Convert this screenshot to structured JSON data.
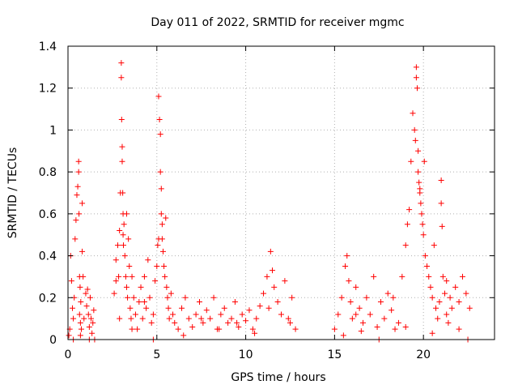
{
  "chart_data": {
    "type": "scatter",
    "title": "Day 011 of 2022, SRMTID for receiver mgmc",
    "xlabel": "GPS time / hours",
    "ylabel": "SRMTID / TECUs",
    "xlim": [
      0,
      24
    ],
    "ylim": [
      0,
      1.4
    ],
    "xticks": [
      0,
      5,
      10,
      15,
      20
    ],
    "yticks": [
      0,
      0.2,
      0.4,
      0.6,
      0.8,
      1.0,
      1.2,
      1.4
    ],
    "xtick_labels": [
      "0",
      "5",
      "10",
      "15",
      "20"
    ],
    "ytick_labels": [
      "0",
      "0.2",
      "0.4",
      "0.6",
      "0.8",
      "1",
      "1.2",
      "1.4"
    ],
    "grid": true,
    "marker": "+",
    "series": [
      {
        "name": "SRMTID",
        "color": "#ff0000",
        "x": [
          0.05,
          0.1,
          0.15,
          0.2,
          0.25,
          0.3,
          0.35,
          0.4,
          0.45,
          0.5,
          0.55,
          0.6,
          0.6,
          0.62,
          0.65,
          0.65,
          0.68,
          0.7,
          0.7,
          0.72,
          0.75,
          0.8,
          0.85,
          0.9,
          1.0,
          1.05,
          1.1,
          1.15,
          1.2,
          1.25,
          1.3,
          1.35,
          1.4,
          1.45,
          1.5,
          2.6,
          2.7,
          2.8,
          2.85,
          2.9,
          2.95,
          3.0,
          3.0,
          3.02,
          3.05,
          3.05,
          3.08,
          3.1,
          3.1,
          3.12,
          3.15,
          3.2,
          3.25,
          3.3,
          3.35,
          3.4,
          3.45,
          3.5,
          3.55,
          3.6,
          3.7,
          3.8,
          3.9,
          4.0,
          4.1,
          4.2,
          4.3,
          4.4,
          4.5,
          4.6,
          4.7,
          4.8,
          4.9,
          5.0,
          5.05,
          5.1,
          5.15,
          5.2,
          5.2,
          5.25,
          5.25,
          5.3,
          5.3,
          5.35,
          5.4,
          5.45,
          5.5,
          5.55,
          5.6,
          5.65,
          5.7,
          5.8,
          5.9,
          6.0,
          6.2,
          6.4,
          6.6,
          6.8,
          7.0,
          7.2,
          7.4,
          7.6,
          7.8,
          8.0,
          8.2,
          8.4,
          8.6,
          8.8,
          9.0,
          9.2,
          9.4,
          9.6,
          9.8,
          10.0,
          10.2,
          10.4,
          10.6,
          10.8,
          11.0,
          11.2,
          11.4,
          11.5,
          11.6,
          11.8,
          12.0,
          12.2,
          12.4,
          12.6,
          12.8,
          15.0,
          15.2,
          15.4,
          15.6,
          15.7,
          15.8,
          15.9,
          16.0,
          16.2,
          16.4,
          16.6,
          16.8,
          17.0,
          17.2,
          17.4,
          17.6,
          17.8,
          18.0,
          18.2,
          18.4,
          18.6,
          18.8,
          19.0,
          19.1,
          19.2,
          19.3,
          19.4,
          19.5,
          19.55,
          19.6,
          19.6,
          19.65,
          19.7,
          19.7,
          19.75,
          19.8,
          19.85,
          19.9,
          19.95,
          20.0,
          20.05,
          20.1,
          20.2,
          20.3,
          20.4,
          20.5,
          20.6,
          20.7,
          20.8,
          20.9,
          21.0,
          21.0,
          21.05,
          21.1,
          21.2,
          21.3,
          21.4,
          21.5,
          21.6,
          21.8,
          22.0,
          22.2,
          22.4,
          22.6,
          0.3,
          1.2,
          2.9,
          3.6,
          4.8,
          6.5,
          8.5,
          10.5,
          12.5,
          15.5,
          16.5,
          17.5,
          19.0,
          20.5,
          22.0,
          0.8,
          2.7,
          3.3,
          4.3,
          5.1,
          7.5,
          9.5,
          11.3,
          16.2,
          18.3,
          19.8,
          21.3,
          22.5
        ],
        "y": [
          0.02,
          0.05,
          0.4,
          0.28,
          0.15,
          0.1,
          0.2,
          0.48,
          0.57,
          0.69,
          0.73,
          0.8,
          0.85,
          0.6,
          0.3,
          0.12,
          0.25,
          0.08,
          0.02,
          0.18,
          0.05,
          0.42,
          0.3,
          0.1,
          0.22,
          0.16,
          0.24,
          0.12,
          0.06,
          0.2,
          0.1,
          0.03,
          0.08,
          0.14,
          0.0,
          0.22,
          0.38,
          0.45,
          0.3,
          0.52,
          0.7,
          1.32,
          1.25,
          1.05,
          0.92,
          0.85,
          0.7,
          0.6,
          0.5,
          0.45,
          0.55,
          0.4,
          0.3,
          0.25,
          0.2,
          0.48,
          0.35,
          0.15,
          0.1,
          0.3,
          0.2,
          0.12,
          0.05,
          0.18,
          0.25,
          0.1,
          0.3,
          0.15,
          0.38,
          0.2,
          0.08,
          0.12,
          0.28,
          0.35,
          0.45,
          1.16,
          1.05,
          0.98,
          0.8,
          0.72,
          0.6,
          0.55,
          0.48,
          0.42,
          0.35,
          0.3,
          0.58,
          0.25,
          0.2,
          0.15,
          0.1,
          0.22,
          0.12,
          0.08,
          0.05,
          0.15,
          0.2,
          0.1,
          0.06,
          0.12,
          0.18,
          0.08,
          0.14,
          0.1,
          0.2,
          0.05,
          0.12,
          0.15,
          0.08,
          0.1,
          0.18,
          0.06,
          0.12,
          0.09,
          0.14,
          0.05,
          0.1,
          0.16,
          0.22,
          0.3,
          0.42,
          0.33,
          0.25,
          0.18,
          0.12,
          0.28,
          0.1,
          0.2,
          0.05,
          0.05,
          0.12,
          0.2,
          0.35,
          0.4,
          0.28,
          0.18,
          0.1,
          0.25,
          0.15,
          0.08,
          0.2,
          0.12,
          0.3,
          0.06,
          0.18,
          0.1,
          0.22,
          0.14,
          0.05,
          0.08,
          0.3,
          0.45,
          0.55,
          0.62,
          0.85,
          1.08,
          1.0,
          0.95,
          1.3,
          1.25,
          1.2,
          0.9,
          0.8,
          0.75,
          0.7,
          0.65,
          0.6,
          0.55,
          0.5,
          0.85,
          0.4,
          0.35,
          0.3,
          0.25,
          0.2,
          0.45,
          0.15,
          0.1,
          0.18,
          0.76,
          0.65,
          0.54,
          0.3,
          0.22,
          0.12,
          0.08,
          0.2,
          0.15,
          0.25,
          0.18,
          0.3,
          0.22,
          0.15,
          0.0,
          0.0,
          0.1,
          0.05,
          0.0,
          0.02,
          0.05,
          0.03,
          0.08,
          0.02,
          0.04,
          0.0,
          0.06,
          0.03,
          0.05,
          0.65,
          0.28,
          0.6,
          0.18,
          0.48,
          0.1,
          0.08,
          0.15,
          0.12,
          0.2,
          0.72,
          0.28,
          0.0
        ]
      }
    ]
  }
}
